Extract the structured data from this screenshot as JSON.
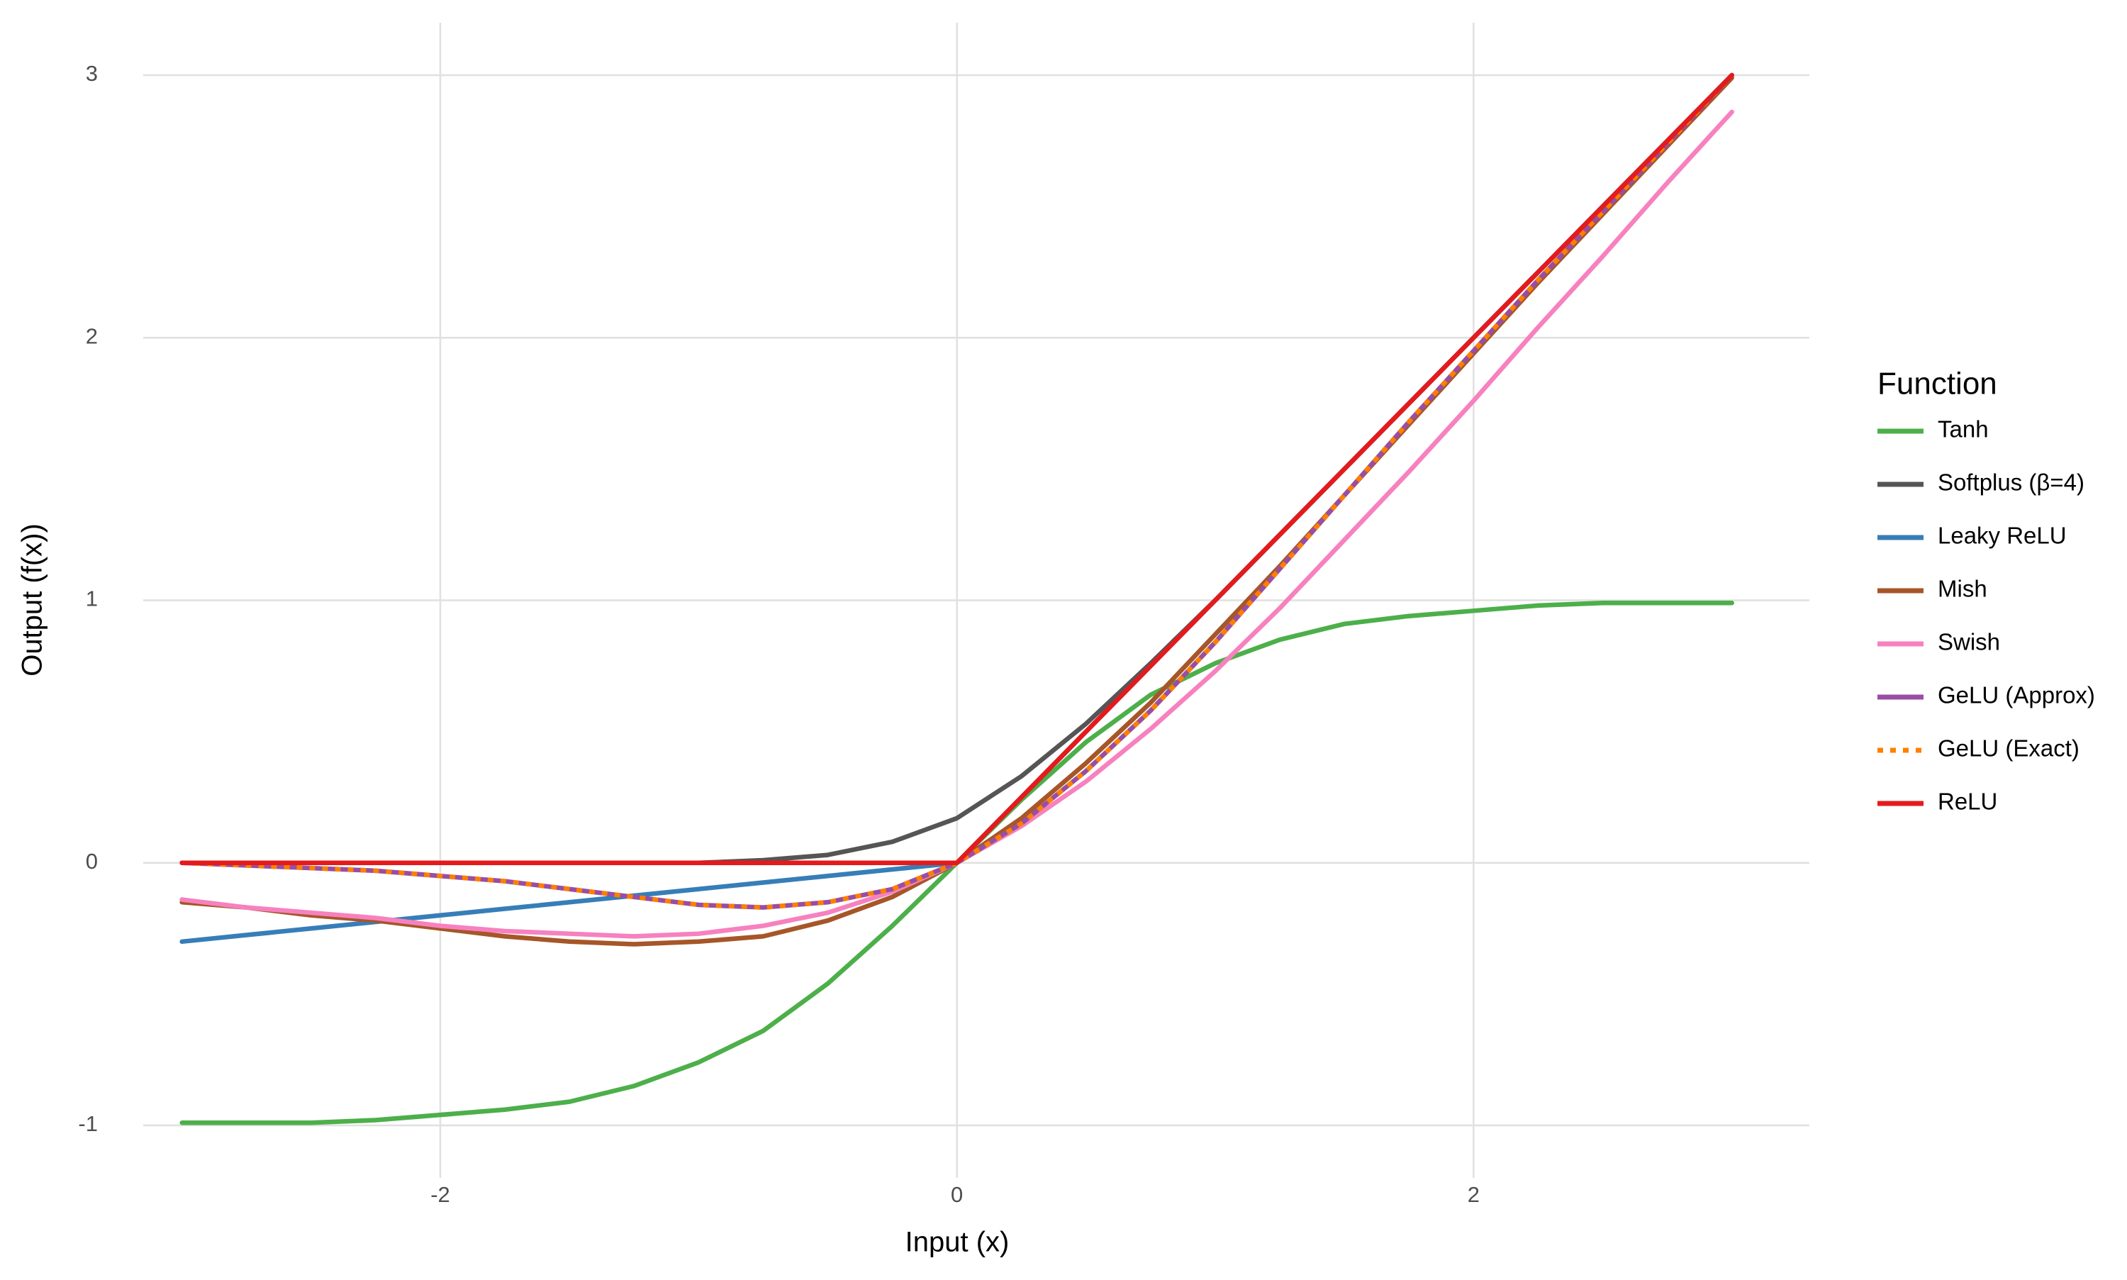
{
  "chart_data": {
    "type": "line",
    "x_label": "Input (x)",
    "y_label": "Output (f(x))",
    "legend_title": "Function",
    "legend_position": "right",
    "grid": true,
    "xlim": [
      -3.15,
      3.3
    ],
    "ylim": [
      -1.2,
      3.2
    ],
    "xticks": [
      -2,
      0,
      2
    ],
    "yticks": [
      -1,
      0,
      1,
      2,
      3
    ],
    "x": [
      -3,
      -2.75,
      -2.5,
      -2.25,
      -2,
      -1.75,
      -1.5,
      -1.25,
      -1,
      -0.75,
      -0.5,
      -0.25,
      0,
      0.25,
      0.5,
      0.75,
      1,
      1.25,
      1.5,
      1.75,
      2,
      2.25,
      2.5,
      2.75,
      3
    ],
    "series": [
      {
        "name": "Tanh",
        "color": "#4daf4a",
        "values": [
          -0.99,
          -0.99,
          -0.99,
          -0.98,
          -0.96,
          -0.94,
          -0.91,
          -0.85,
          -0.76,
          -0.64,
          -0.46,
          -0.24,
          0,
          0.24,
          0.46,
          0.64,
          0.76,
          0.85,
          0.91,
          0.94,
          0.96,
          0.98,
          0.99,
          0.99,
          0.99
        ]
      },
      {
        "name": "Softplus (β=4)",
        "color": "#555555",
        "values": [
          0,
          0,
          0,
          0,
          0,
          0,
          0,
          0,
          0,
          0.01,
          0.03,
          0.08,
          0.17,
          0.33,
          0.53,
          0.76,
          1,
          1.25,
          1.5,
          1.75,
          2,
          2.25,
          2.5,
          2.75,
          3
        ]
      },
      {
        "name": "Leaky ReLU",
        "color": "#377eb8",
        "values": [
          -0.3,
          -0.275,
          -0.25,
          -0.225,
          -0.2,
          -0.175,
          -0.15,
          -0.125,
          -0.1,
          -0.075,
          -0.05,
          -0.025,
          0,
          0.25,
          0.5,
          0.75,
          1,
          1.25,
          1.5,
          1.75,
          2,
          2.25,
          2.5,
          2.75,
          3
        ]
      },
      {
        "name": "Mish",
        "color": "#a65628",
        "values": [
          -0.15,
          -0.17,
          -0.2,
          -0.22,
          -0.25,
          -0.28,
          -0.3,
          -0.31,
          -0.3,
          -0.28,
          -0.22,
          -0.13,
          0,
          0.17,
          0.38,
          0.61,
          0.87,
          1.13,
          1.4,
          1.67,
          1.94,
          2.21,
          2.47,
          2.73,
          2.99
        ]
      },
      {
        "name": "Swish",
        "color": "#f781bf",
        "values": [
          -0.14,
          -0.17,
          -0.19,
          -0.21,
          -0.24,
          -0.26,
          -0.27,
          -0.28,
          -0.27,
          -0.24,
          -0.19,
          -0.11,
          0,
          0.14,
          0.31,
          0.51,
          0.73,
          0.97,
          1.23,
          1.49,
          1.76,
          2.04,
          2.31,
          2.59,
          2.86
        ]
      },
      {
        "name": "GeLU (Approx)",
        "color": "#984ea3",
        "values": [
          0,
          -0.01,
          -0.02,
          -0.03,
          -0.05,
          -0.07,
          -0.1,
          -0.13,
          -0.16,
          -0.17,
          -0.15,
          -0.1,
          0,
          0.15,
          0.35,
          0.58,
          0.84,
          1.12,
          1.4,
          1.68,
          1.95,
          2.22,
          2.48,
          2.74,
          3
        ]
      },
      {
        "name": "GeLU (Exact)",
        "color": "#ff7f00",
        "linestyle": "dashed",
        "values": [
          0,
          -0.01,
          -0.02,
          -0.03,
          -0.05,
          -0.07,
          -0.1,
          -0.13,
          -0.16,
          -0.17,
          -0.15,
          -0.1,
          0,
          0.15,
          0.35,
          0.58,
          0.84,
          1.12,
          1.4,
          1.68,
          1.95,
          2.22,
          2.48,
          2.74,
          3
        ]
      },
      {
        "name": "ReLU",
        "color": "#e41a1c",
        "values": [
          0,
          0,
          0,
          0,
          0,
          0,
          0,
          0,
          0,
          0,
          0,
          0,
          0,
          0.25,
          0.5,
          0.75,
          1,
          1.25,
          1.5,
          1.75,
          2,
          2.25,
          2.5,
          2.75,
          3
        ]
      }
    ]
  }
}
